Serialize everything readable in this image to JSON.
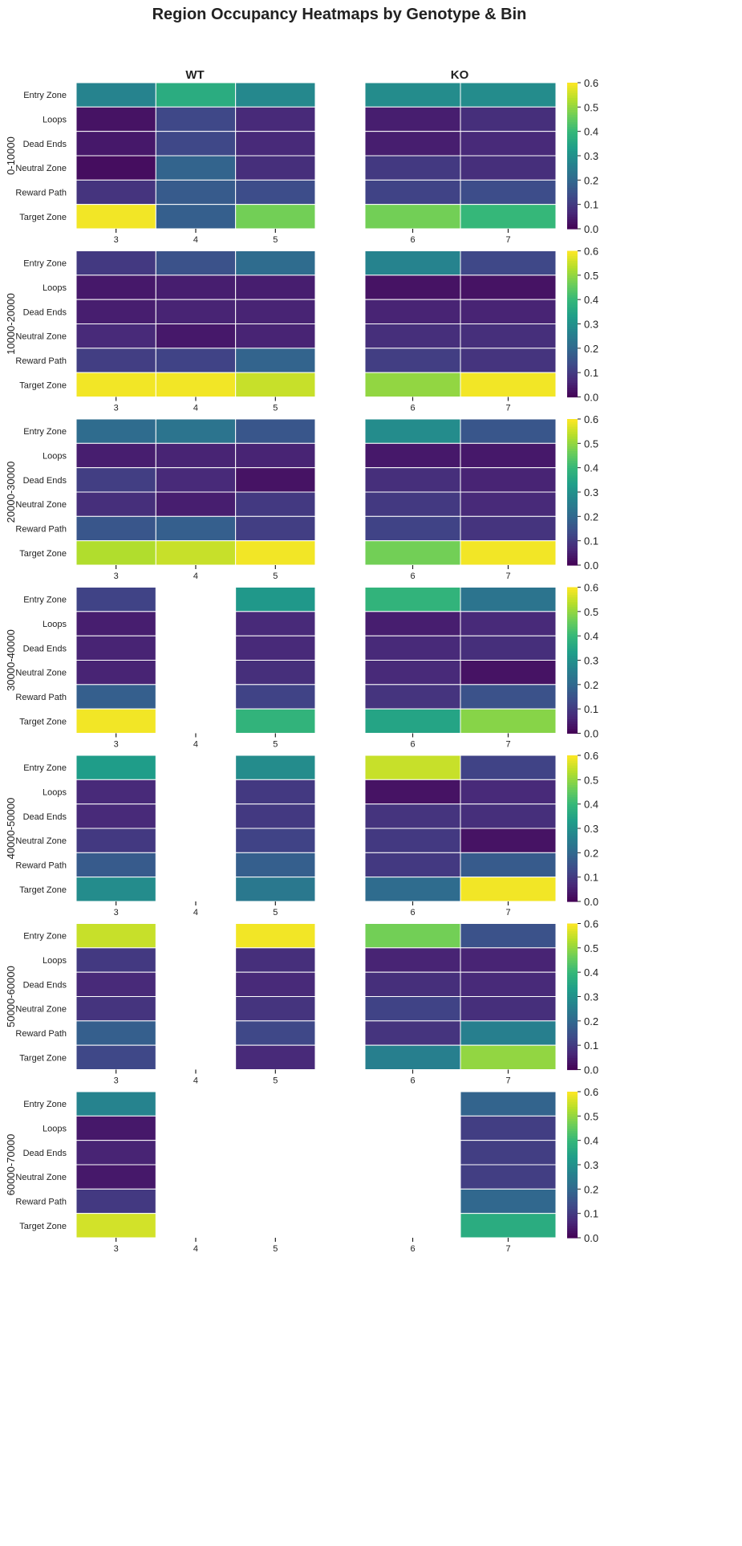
{
  "chart_data": {
    "type": "heatmap",
    "title": "Region Occupancy Heatmaps by Genotype & Bin",
    "colormap": "viridis",
    "vmin": 0.0,
    "vmax": 0.6,
    "colorbar_ticks": [
      "0.0",
      "0.1",
      "0.2",
      "0.3",
      "0.4",
      "0.5",
      "0.6"
    ],
    "regions": [
      "Entry Zone",
      "Loops",
      "Dead Ends",
      "Neutral Zone",
      "Reward Path",
      "Target Zone"
    ],
    "genotypes": [
      {
        "name": "WT",
        "columns": [
          "3",
          "4",
          "5"
        ]
      },
      {
        "name": "KO",
        "columns": [
          "6",
          "7"
        ]
      }
    ],
    "bins": [
      {
        "label": "0-10000",
        "WT": [
          [
            0.27,
            0.37,
            0.28
          ],
          [
            0.03,
            0.13,
            0.07
          ],
          [
            0.04,
            0.13,
            0.07
          ],
          [
            0.02,
            0.19,
            0.08
          ],
          [
            0.09,
            0.17,
            0.14
          ],
          [
            0.59,
            0.18,
            0.47
          ]
        ],
        "KO": [
          [
            0.29,
            0.29
          ],
          [
            0.05,
            0.08
          ],
          [
            0.05,
            0.07
          ],
          [
            0.1,
            0.08
          ],
          [
            0.12,
            0.14
          ],
          [
            0.47,
            0.4
          ]
        ]
      },
      {
        "label": "10000-20000",
        "WT": [
          [
            0.1,
            0.15,
            0.21
          ],
          [
            0.04,
            0.05,
            0.05
          ],
          [
            0.05,
            0.06,
            0.06
          ],
          [
            0.07,
            0.04,
            0.06
          ],
          [
            0.11,
            0.12,
            0.19
          ],
          [
            0.59,
            0.59,
            0.55
          ]
        ],
        "KO": [
          [
            0.27,
            0.13
          ],
          [
            0.03,
            0.03
          ],
          [
            0.06,
            0.06
          ],
          [
            0.08,
            0.08
          ],
          [
            0.11,
            0.09
          ],
          [
            0.5,
            0.59
          ]
        ]
      },
      {
        "label": "20000-30000",
        "WT": [
          [
            0.21,
            0.23,
            0.16
          ],
          [
            0.05,
            0.06,
            0.06
          ],
          [
            0.11,
            0.07,
            0.03
          ],
          [
            0.08,
            0.05,
            0.1
          ],
          [
            0.16,
            0.18,
            0.11
          ],
          [
            0.53,
            0.55,
            0.59
          ]
        ],
        "KO": [
          [
            0.29,
            0.16
          ],
          [
            0.04,
            0.04
          ],
          [
            0.08,
            0.06
          ],
          [
            0.1,
            0.07
          ],
          [
            0.12,
            0.09
          ],
          [
            0.47,
            0.59
          ]
        ]
      },
      {
        "label": "30000-40000",
        "WT": [
          [
            0.12,
            null,
            0.32
          ],
          [
            0.05,
            null,
            0.07
          ],
          [
            0.06,
            null,
            0.07
          ],
          [
            0.06,
            null,
            0.08
          ],
          [
            0.18,
            null,
            0.12
          ],
          [
            0.59,
            null,
            0.39
          ]
        ],
        "KO": [
          [
            0.39,
            0.23
          ],
          [
            0.05,
            0.07
          ],
          [
            0.07,
            0.08
          ],
          [
            0.07,
            0.03
          ],
          [
            0.09,
            0.15
          ],
          [
            0.35,
            0.49
          ]
        ]
      },
      {
        "label": "40000-50000",
        "WT": [
          [
            0.33,
            null,
            0.29
          ],
          [
            0.07,
            null,
            0.1
          ],
          [
            0.07,
            null,
            0.1
          ],
          [
            0.1,
            null,
            0.12
          ],
          [
            0.17,
            null,
            0.18
          ],
          [
            0.29,
            null,
            0.24
          ]
        ],
        "KO": [
          [
            0.55,
            0.12
          ],
          [
            0.03,
            0.07
          ],
          [
            0.09,
            0.08
          ],
          [
            0.1,
            0.03
          ],
          [
            0.1,
            0.17
          ],
          [
            0.21,
            0.59
          ]
        ]
      },
      {
        "label": "50000-60000",
        "WT": [
          [
            0.55,
            null,
            0.59
          ],
          [
            0.1,
            null,
            0.08
          ],
          [
            0.07,
            null,
            0.07
          ],
          [
            0.09,
            null,
            0.09
          ],
          [
            0.18,
            null,
            0.13
          ],
          [
            0.13,
            null,
            0.07
          ]
        ],
        "KO": [
          [
            0.47,
            0.15
          ],
          [
            0.06,
            0.06
          ],
          [
            0.08,
            0.07
          ],
          [
            0.12,
            0.08
          ],
          [
            0.09,
            0.26
          ],
          [
            0.26,
            0.5
          ]
        ]
      },
      {
        "label": "60000-70000",
        "WT": [
          [
            0.27,
            null,
            null
          ],
          [
            0.04,
            null,
            null
          ],
          [
            0.06,
            null,
            null
          ],
          [
            0.04,
            null,
            null
          ],
          [
            0.1,
            null,
            null
          ],
          [
            0.56,
            null,
            null
          ]
        ],
        "KO": [
          [
            null,
            0.19
          ],
          [
            null,
            0.11
          ],
          [
            null,
            0.11
          ],
          [
            null,
            0.11
          ],
          [
            null,
            0.2
          ],
          [
            null,
            0.37
          ]
        ]
      }
    ]
  }
}
